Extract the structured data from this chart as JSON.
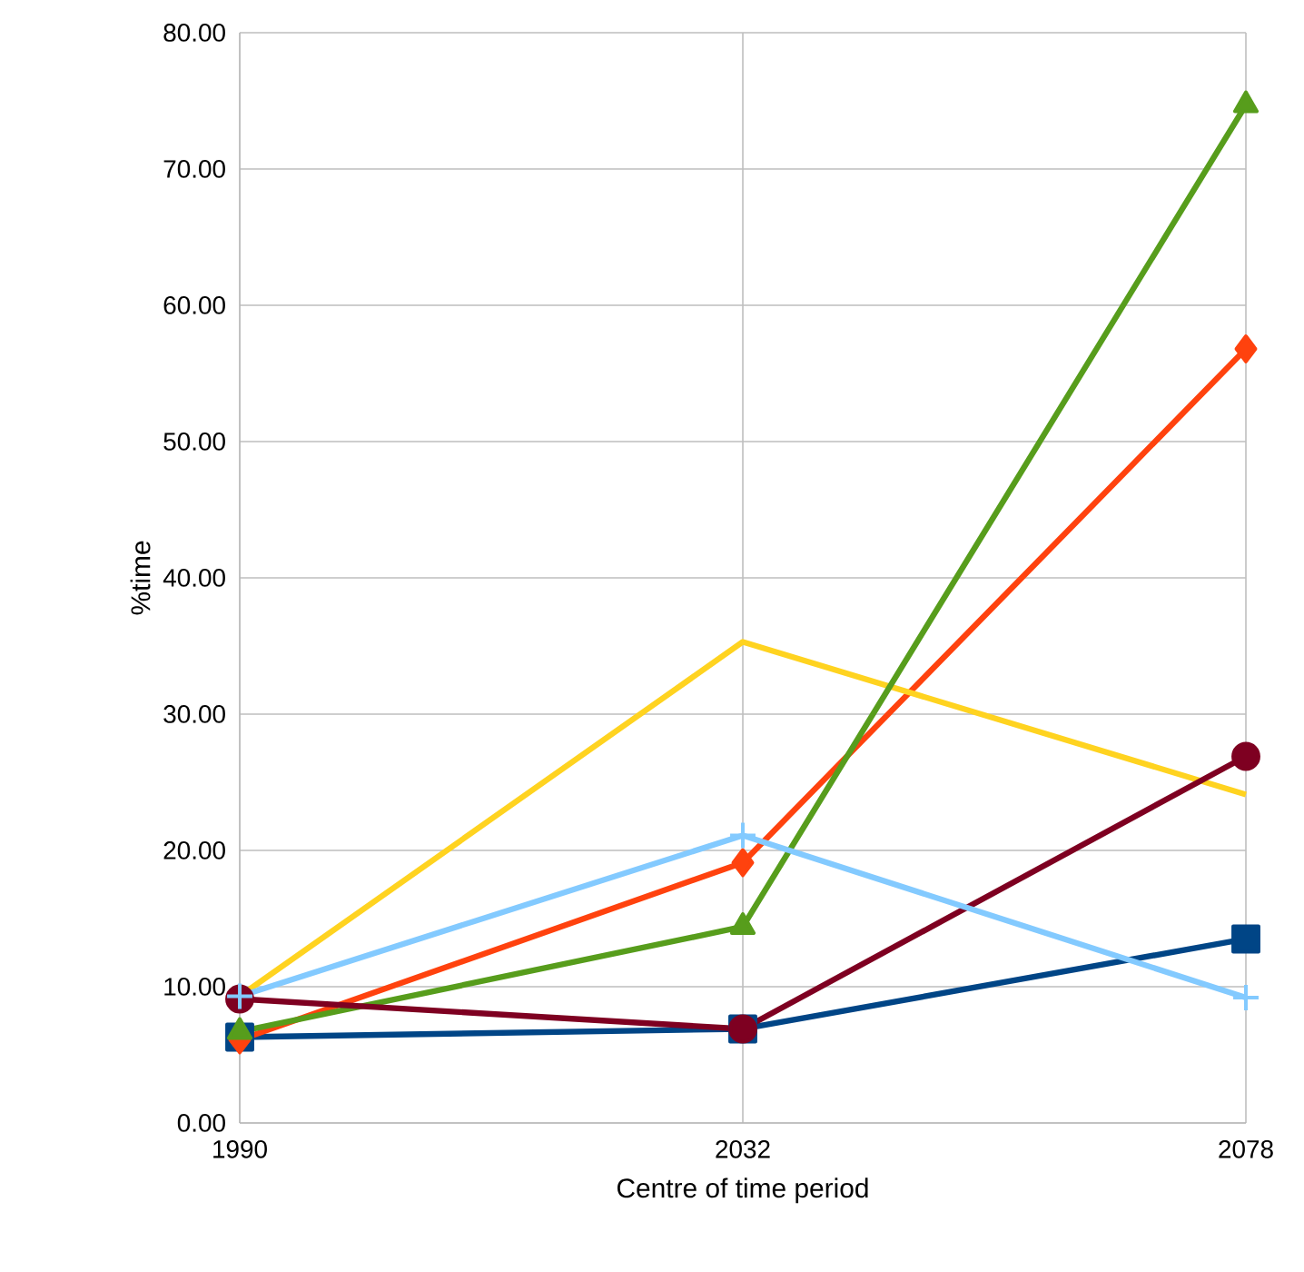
{
  "chart_data": {
    "type": "line",
    "xlabel": "Centre of time period",
    "ylabel": "%time",
    "categories": [
      "1990",
      "2032",
      "2078"
    ],
    "ylim": [
      0,
      80
    ],
    "yticks": [
      {
        "value": 0,
        "label": "0.00"
      },
      {
        "value": 10,
        "label": "10.00"
      },
      {
        "value": 20,
        "label": "20.00"
      },
      {
        "value": 30,
        "label": "30.00"
      },
      {
        "value": 40,
        "label": "40.00"
      },
      {
        "value": 50,
        "label": "50.00"
      },
      {
        "value": 60,
        "label": "60.00"
      },
      {
        "value": 70,
        "label": "70.00"
      },
      {
        "value": 80,
        "label": "80.00"
      }
    ],
    "grid": true,
    "line_style": "solid",
    "series": [
      {
        "color": "#004586",
        "marker": "square",
        "values": [
          6.3,
          6.9,
          13.5
        ]
      },
      {
        "color": "#ff420e",
        "marker": "diamond",
        "values": [
          6.1,
          19.1,
          56.8
        ]
      },
      {
        "color": "#ffd320",
        "marker": "none",
        "values": [
          9.3,
          35.3,
          24.1
        ]
      },
      {
        "color": "#579d1c",
        "marker": "triangle",
        "values": [
          6.7,
          14.4,
          74.7
        ]
      },
      {
        "color": "#7e0021",
        "marker": "circle",
        "values": [
          9.1,
          6.9,
          26.9
        ]
      },
      {
        "color": "#83caff",
        "marker": "cross",
        "values": [
          9.3,
          21.1,
          9.2
        ]
      }
    ]
  }
}
